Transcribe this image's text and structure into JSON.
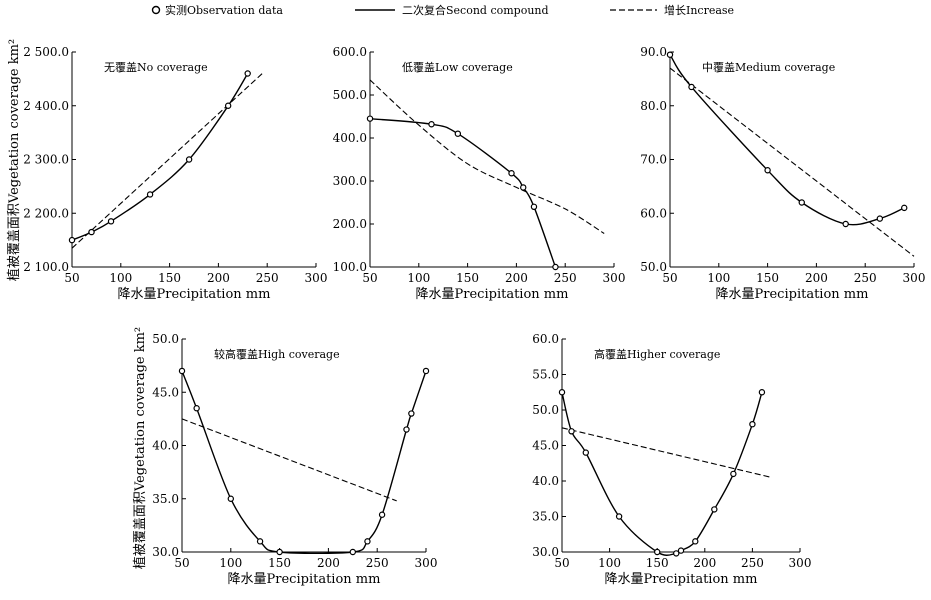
{
  "legend": {
    "observation": "实测Observation data",
    "second_compound": "二次复合Second compound",
    "increase": "增长Increase"
  },
  "ylabel": "植被覆盖面积Vegetation coverage km²",
  "chart_data": [
    {
      "type": "line",
      "title": "无覆盖No coverage",
      "xlabel": "降水量Precipitation mm",
      "xlim": [
        50,
        300
      ],
      "ylim": [
        2100,
        2500
      ],
      "xticks": [
        "50",
        "100",
        "150",
        "200",
        "250",
        "300"
      ],
      "yticks": [
        "2 100.0",
        "2 200.0",
        "2 300.0",
        "2 400.0",
        "2 500.0"
      ],
      "observation": {
        "x": [
          50,
          70,
          90,
          130,
          170,
          210,
          230
        ],
        "y": [
          2150,
          2165,
          2185,
          2235,
          2300,
          2400,
          2460
        ]
      },
      "second_compound": {
        "x": [
          50,
          70,
          90,
          130,
          170,
          210,
          230
        ],
        "y": [
          2150,
          2165,
          2185,
          2235,
          2300,
          2400,
          2460
        ]
      },
      "increase": {
        "x": [
          50,
          245
        ],
        "y": [
          2135,
          2460
        ]
      }
    },
    {
      "type": "line",
      "title": "低覆盖Low coverage",
      "xlabel": "降水量Precipitation mm",
      "xlim": [
        50,
        300
      ],
      "ylim": [
        100,
        600
      ],
      "xticks": [
        "50",
        "100",
        "150",
        "200",
        "250",
        "300"
      ],
      "yticks": [
        "100.0",
        "200.0",
        "300.0",
        "400.0",
        "500.0",
        "600.0"
      ],
      "observation": {
        "x": [
          50,
          113,
          140,
          195,
          207,
          218,
          240
        ],
        "y": [
          445,
          432,
          410,
          318,
          285,
          240,
          100
        ]
      },
      "second_compound": {
        "x": [
          50,
          113,
          140,
          195,
          207,
          218,
          240
        ],
        "y": [
          445,
          432,
          410,
          318,
          285,
          240,
          100
        ]
      },
      "increase": {
        "x": [
          50,
          100,
          150,
          200,
          250,
          290
        ],
        "y": [
          535,
          430,
          340,
          285,
          235,
          178
        ]
      }
    },
    {
      "type": "line",
      "title": "中覆盖Medium coverage",
      "xlabel": "降水量Precipitation mm",
      "xlim": [
        50,
        300
      ],
      "ylim": [
        50,
        90
      ],
      "xticks": [
        "50",
        "100",
        "150",
        "200",
        "250",
        "300"
      ],
      "yticks": [
        "50.0",
        "60.0",
        "70.0",
        "80.0",
        "90.0"
      ],
      "observation": {
        "x": [
          50,
          72,
          150,
          185,
          230,
          265,
          290
        ],
        "y": [
          89.5,
          83.5,
          68,
          62,
          58,
          59,
          61
        ]
      },
      "second_compound": {
        "x": [
          50,
          72,
          150,
          185,
          230,
          265,
          290
        ],
        "y": [
          89.5,
          83.5,
          68,
          62,
          58,
          59,
          61
        ]
      },
      "increase": {
        "x": [
          50,
          300
        ],
        "y": [
          87,
          52
        ]
      }
    },
    {
      "type": "line",
      "title": "较高覆盖High coverage",
      "xlabel": "降水量Precipitation mm",
      "xlim": [
        50,
        300
      ],
      "ylim": [
        30,
        50
      ],
      "xticks": [
        "50",
        "100",
        "150",
        "200",
        "250",
        "300"
      ],
      "yticks": [
        "30.0",
        "35.0",
        "40.0",
        "45.0",
        "50.0"
      ],
      "observation": {
        "x": [
          50,
          65,
          100,
          130,
          150,
          225,
          240,
          255,
          280,
          285,
          300
        ],
        "y": [
          47,
          43.5,
          35,
          31,
          30,
          30,
          31,
          33.5,
          41.5,
          43,
          47
        ]
      },
      "second_compound": {
        "x": [
          50,
          65,
          100,
          130,
          150,
          225,
          240,
          255,
          280,
          285,
          300
        ],
        "y": [
          47,
          43.5,
          35,
          31,
          30,
          30,
          31,
          33.5,
          41.5,
          43,
          47
        ]
      },
      "increase": {
        "x": [
          50,
          270
        ],
        "y": [
          42.5,
          34.8
        ]
      }
    },
    {
      "type": "line",
      "title": "高覆盖Higher coverage",
      "xlabel": "降水量Precipitation mm",
      "xlim": [
        50,
        300
      ],
      "ylim": [
        30,
        60
      ],
      "xticks": [
        "50",
        "100",
        "150",
        "200",
        "250",
        "300"
      ],
      "yticks": [
        "30.0",
        "35.0",
        "40.0",
        "45.0",
        "50.0",
        "55.0",
        "60.0"
      ],
      "observation": {
        "x": [
          50,
          60,
          75,
          110,
          150,
          170,
          175,
          190,
          210,
          230,
          250,
          260
        ],
        "y": [
          52.5,
          47,
          44,
          35,
          30,
          29.8,
          30.2,
          31.5,
          36,
          41,
          48,
          52.5
        ]
      },
      "second_compound": {
        "x": [
          50,
          60,
          75,
          110,
          150,
          170,
          175,
          190,
          210,
          230,
          250,
          260
        ],
        "y": [
          52.5,
          47,
          44,
          35,
          30,
          29.8,
          30.2,
          31.5,
          36,
          41,
          48,
          52.5
        ]
      },
      "increase": {
        "x": [
          50,
          270
        ],
        "y": [
          47.5,
          40.5
        ]
      }
    }
  ]
}
